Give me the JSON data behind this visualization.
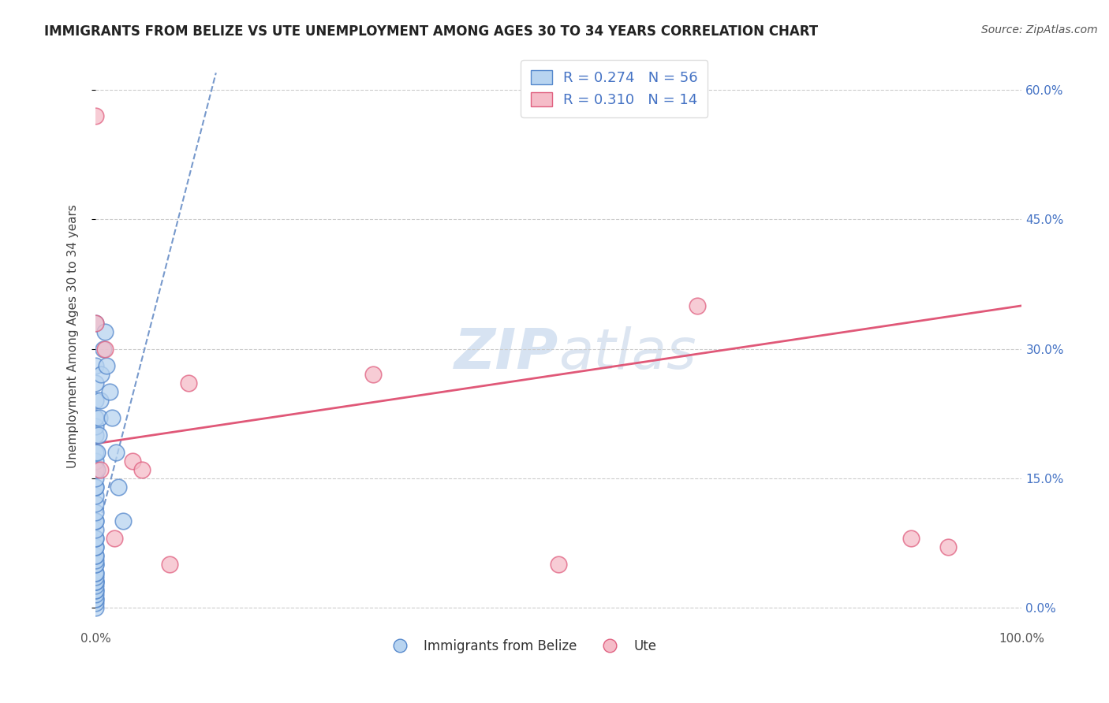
{
  "title": "IMMIGRANTS FROM BELIZE VS UTE UNEMPLOYMENT AMONG AGES 30 TO 34 YEARS CORRELATION CHART",
  "source": "Source: ZipAtlas.com",
  "ylabel": "Unemployment Among Ages 30 to 34 years",
  "xlim": [
    0,
    1.0
  ],
  "ylim": [
    -0.02,
    0.65
  ],
  "xticks": [
    0.0,
    0.25,
    0.5,
    0.75,
    1.0
  ],
  "xticklabels": [
    "0.0%",
    "",
    "",
    "",
    "100.0%"
  ],
  "ytick_positions": [
    0.0,
    0.15,
    0.3,
    0.45,
    0.6
  ],
  "yticklabels_right": [
    "0.0%",
    "15.0%",
    "30.0%",
    "45.0%",
    "60.0%"
  ],
  "legend_r1": "R = 0.274",
  "legend_n1": "N = 56",
  "legend_r2": "R = 0.310",
  "legend_n2": "N = 14",
  "color_blue_fill": "#b8d4f0",
  "color_blue_edge": "#5588cc",
  "color_pink_fill": "#f5bcc8",
  "color_pink_edge": "#e06080",
  "color_blue_text": "#4472c4",
  "color_pink_line": "#e05878",
  "color_blue_line": "#7799cc",
  "watermark_color": "#d0dff0",
  "blue_x": [
    0.0,
    0.0,
    0.0,
    0.0,
    0.0,
    0.0,
    0.0,
    0.0,
    0.0,
    0.0,
    0.0,
    0.0,
    0.0,
    0.0,
    0.0,
    0.0,
    0.0,
    0.0,
    0.0,
    0.0,
    0.0,
    0.0,
    0.0,
    0.0,
    0.0,
    0.0,
    0.0,
    0.0,
    0.0,
    0.0,
    0.0,
    0.0,
    0.0,
    0.0,
    0.0,
    0.0,
    0.0,
    0.0,
    0.0,
    0.0,
    0.0,
    0.0,
    0.002,
    0.002,
    0.003,
    0.004,
    0.005,
    0.006,
    0.008,
    0.01,
    0.012,
    0.015,
    0.018,
    0.022,
    0.025,
    0.03
  ],
  "blue_y": [
    0.0,
    0.005,
    0.01,
    0.01,
    0.015,
    0.02,
    0.02,
    0.025,
    0.03,
    0.03,
    0.03,
    0.035,
    0.04,
    0.04,
    0.05,
    0.05,
    0.055,
    0.06,
    0.06,
    0.07,
    0.07,
    0.08,
    0.08,
    0.09,
    0.1,
    0.1,
    0.11,
    0.12,
    0.13,
    0.14,
    0.14,
    0.15,
    0.16,
    0.17,
    0.18,
    0.2,
    0.21,
    0.22,
    0.24,
    0.26,
    0.28,
    0.33,
    0.16,
    0.18,
    0.2,
    0.22,
    0.24,
    0.27,
    0.3,
    0.32,
    0.28,
    0.25,
    0.22,
    0.18,
    0.14,
    0.1
  ],
  "pink_x": [
    0.0,
    0.0,
    0.005,
    0.01,
    0.02,
    0.04,
    0.05,
    0.08,
    0.1,
    0.5,
    0.65,
    0.88,
    0.92,
    0.3
  ],
  "pink_y": [
    0.57,
    0.33,
    0.16,
    0.3,
    0.08,
    0.17,
    0.16,
    0.05,
    0.26,
    0.05,
    0.35,
    0.08,
    0.07,
    0.27
  ],
  "blue_trend_x": [
    0.0,
    0.13
  ],
  "blue_trend_y": [
    0.08,
    0.62
  ],
  "pink_trend_x": [
    0.0,
    1.0
  ],
  "pink_trend_y": [
    0.19,
    0.35
  ]
}
